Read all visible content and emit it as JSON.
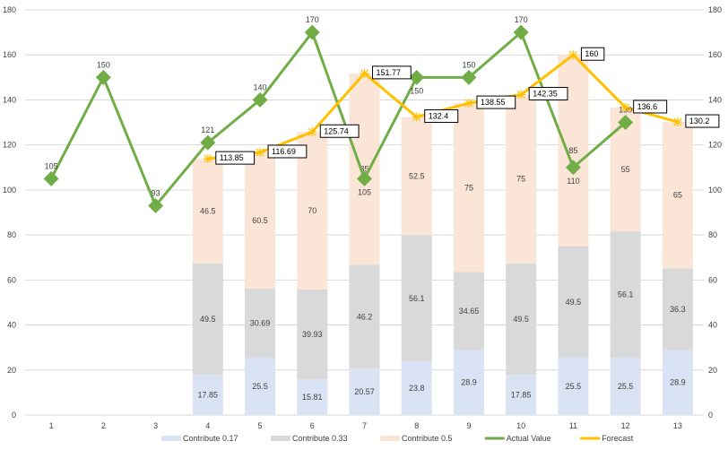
{
  "chart_data": {
    "type": "bar",
    "categories": [
      "1",
      "2",
      "3",
      "4",
      "5",
      "6",
      "7",
      "8",
      "9",
      "10",
      "11",
      "12",
      "13"
    ],
    "ylim": [
      0,
      180
    ],
    "yticks": [
      0,
      20,
      40,
      60,
      80,
      100,
      120,
      140,
      160,
      180
    ],
    "grid": true,
    "legend_position": "bottom",
    "series": [
      {
        "name": "Contribute 0.17",
        "kind": "stacked-bar",
        "color": "#dae3f3",
        "values": [
          null,
          null,
          null,
          17.85,
          25.5,
          15.81,
          20.57,
          23.8,
          28.9,
          17.85,
          25.5,
          25.5,
          28.9
        ]
      },
      {
        "name": "Contribute 0.33",
        "kind": "stacked-bar",
        "color": "#d9d9d9",
        "values": [
          null,
          null,
          null,
          49.5,
          30.69,
          39.93,
          46.2,
          56.1,
          34.65,
          49.5,
          49.5,
          56.1,
          36.3
        ]
      },
      {
        "name": "Contribute 0.5",
        "kind": "stacked-bar",
        "color": "#fbe5d6",
        "values": [
          null,
          null,
          null,
          46.5,
          60.5,
          70,
          85,
          52.5,
          75,
          75,
          85,
          55,
          65
        ]
      },
      {
        "name": "Actual Value",
        "kind": "line",
        "color": "#70ad47",
        "values": [
          105,
          150,
          93,
          121,
          140,
          170,
          105,
          150,
          150,
          170,
          110,
          130,
          null
        ]
      },
      {
        "name": "Forecast",
        "kind": "line",
        "color": "#ffc000",
        "values": [
          null,
          null,
          null,
          113.85,
          116.69,
          125.74,
          151.77,
          132.4,
          138.55,
          142.35,
          160,
          136.6,
          130.2
        ]
      }
    ]
  }
}
